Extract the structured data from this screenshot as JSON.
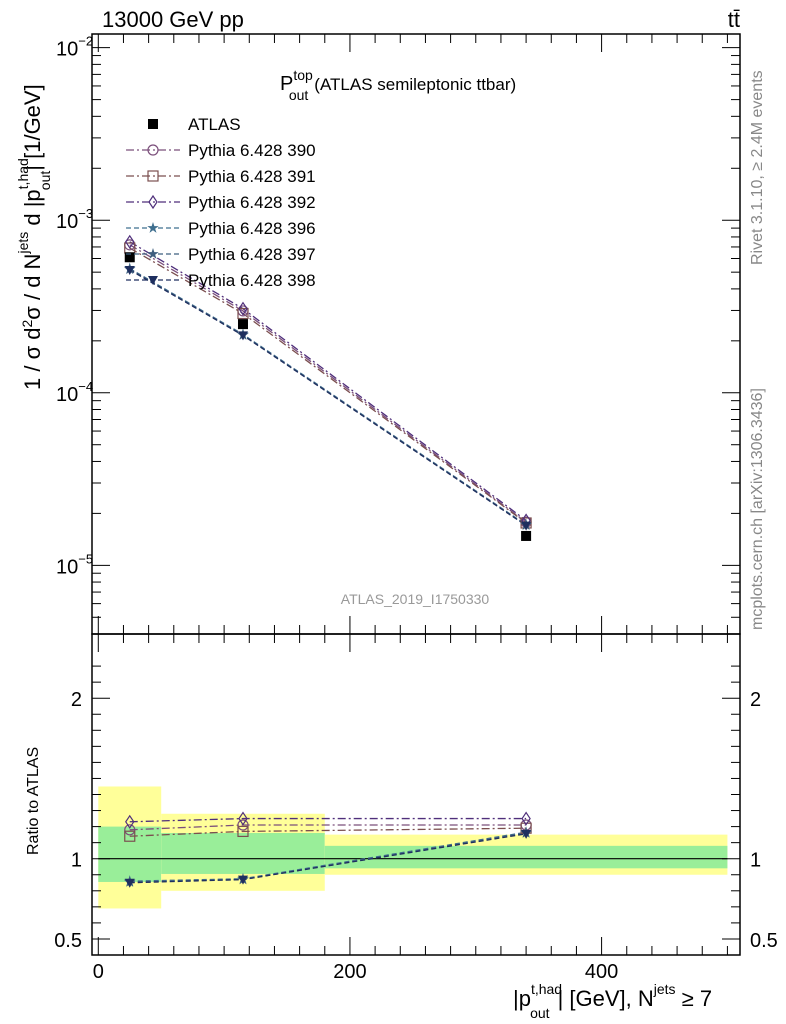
{
  "header": {
    "energy": "13000 GeV pp",
    "process": "tt̄"
  },
  "side": {
    "rivet": "Rivet 3.1.10, ≥ 2.4M events",
    "mcplots": "mcplots.cern.ch [arXiv:1306.3436]"
  },
  "chart_data": [
    {
      "type": "line",
      "panel": "main",
      "title_main": "P",
      "title_sup": "top",
      "title_sub": "out",
      "title_rest": "(ATLAS semileptonic ttbar)",
      "ylabel": "1 / σ d²σ / d N^jets d |p_out^t,had| [1/GeV]",
      "yscale": "log",
      "ylim": [
        4e-06,
        0.012
      ],
      "xlim": [
        -5,
        510
      ],
      "y_ticks": [
        {
          "value": 1e-05,
          "mant": "10",
          "exp": "−5"
        },
        {
          "value": 0.0001,
          "mant": "10",
          "exp": "−4"
        },
        {
          "value": 0.001,
          "mant": "10",
          "exp": "−3"
        },
        {
          "value": 0.01,
          "mant": "10",
          "exp": "−2"
        }
      ],
      "watermark": "ATLAS_2019_I1750330",
      "x": [
        25,
        115,
        340
      ],
      "data": {
        "name": "ATLAS",
        "values": [
          0.00061,
          0.00025,
          1.48e-05
        ],
        "color": "#000000"
      },
      "series": [
        {
          "name": "Pythia 6.428 390",
          "values": [
            0.00072,
            0.000298,
            1.78e-05
          ],
          "color": "#7b4f7b",
          "marker": "circle",
          "dash": "8,3,2,3"
        },
        {
          "name": "Pythia 6.428 391",
          "values": [
            0.00069,
            0.000288,
            1.76e-05
          ],
          "color": "#7b4f4f",
          "marker": "square",
          "dash": "8,3,2,3"
        },
        {
          "name": "Pythia 6.428 392",
          "values": [
            0.00075,
            0.000307,
            1.82e-05
          ],
          "color": "#4f2f7b",
          "marker": "diamond",
          "dash": "8,3,2,3"
        },
        {
          "name": "Pythia 6.428 396",
          "values": [
            0.000525,
            0.000218,
            1.72e-05
          ],
          "color": "#3f6f8f",
          "marker": "star",
          "dash": "5,3"
        },
        {
          "name": "Pythia 6.428 397",
          "values": [
            0.00052,
            0.000216,
            1.71e-05
          ],
          "color": "#3f5f7f",
          "marker": "star",
          "dash": "5,3"
        },
        {
          "name": "Pythia 6.428 398",
          "values": [
            0.000515,
            0.000215,
            1.7e-05
          ],
          "color": "#1f2f5f",
          "marker": "tri-down",
          "dash": "5,3"
        }
      ]
    },
    {
      "type": "line",
      "panel": "ratio",
      "ylabel": "Ratio to ATLAS",
      "xlabel": "|p_out^t,had| [GeV], N^jets ≥ 7",
      "xlabel_main": "|p",
      "xlabel_sup": "t,had",
      "xlabel_sub": "out",
      "xlabel_mid": "| [GeV], N",
      "xlabel_sup2": "jets",
      "xlabel_end": " ≥ 7",
      "ylim": [
        0.4,
        2.4
      ],
      "xlim": [
        -5,
        510
      ],
      "y_ticks": [
        {
          "value": 0.5,
          "label": "0.5"
        },
        {
          "value": 1,
          "label": "1"
        },
        {
          "value": 2,
          "label": "2"
        }
      ],
      "x_ticks": [
        {
          "value": 0,
          "label": "0"
        },
        {
          "value": 200,
          "label": "200"
        },
        {
          "value": 400,
          "label": "400"
        }
      ],
      "bands": [
        {
          "x0": 0,
          "x1": 50,
          "inner": [
            0.855,
            1.2
          ],
          "outer": [
            0.69,
            1.45
          ]
        },
        {
          "x0": 50,
          "x1": 180,
          "inner": [
            0.905,
            1.16
          ],
          "outer": [
            0.8,
            1.28
          ]
        },
        {
          "x0": 180,
          "x1": 500,
          "inner": [
            0.94,
            1.08
          ],
          "outer": [
            0.9,
            1.15
          ]
        }
      ],
      "x": [
        25,
        115,
        340
      ],
      "series": [
        {
          "name": "Pythia 6.428 390",
          "values": [
            1.18,
            1.21,
            1.21
          ]
        },
        {
          "name": "Pythia 6.428 391",
          "values": [
            1.14,
            1.17,
            1.19
          ]
        },
        {
          "name": "Pythia 6.428 392",
          "values": [
            1.23,
            1.25,
            1.25
          ]
        },
        {
          "name": "Pythia 6.428 396",
          "values": [
            0.86,
            0.875,
            1.165
          ]
        },
        {
          "name": "Pythia 6.428 397",
          "values": [
            0.855,
            0.87,
            1.16
          ]
        },
        {
          "name": "Pythia 6.428 398",
          "values": [
            0.85,
            0.87,
            1.155
          ]
        }
      ]
    }
  ]
}
